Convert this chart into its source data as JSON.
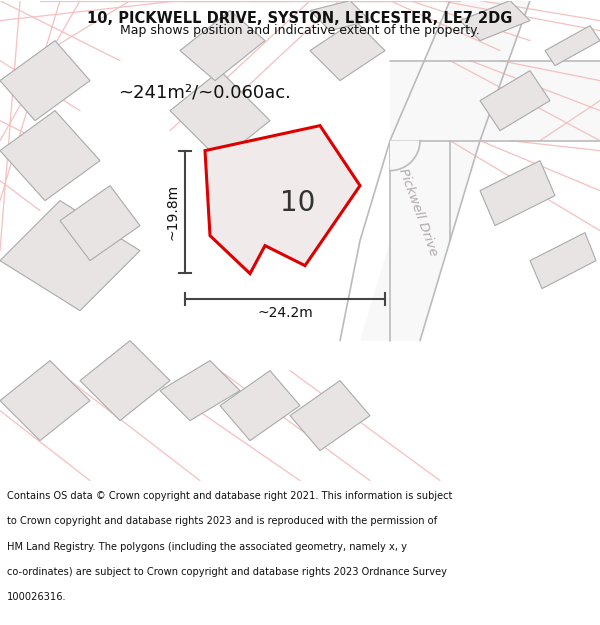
{
  "title_line1": "10, PICKWELL DRIVE, SYSTON, LEICESTER, LE7 2DG",
  "title_line2": "Map shows position and indicative extent of the property.",
  "property_label": "10",
  "area_label": "~241m²/~0.060ac.",
  "dim_width": "~24.2m",
  "dim_height": "~19.8m",
  "street_label": "Pickwell Drive",
  "footer_lines": [
    "Contains OS data © Crown copyright and database right 2021. This information is subject",
    "to Crown copyright and database rights 2023 and is reproduced with the permission of",
    "HM Land Registry. The polygons (including the associated geometry, namely x, y",
    "co-ordinates) are subject to Crown copyright and database rights 2023 Ordnance Survey",
    "100026316."
  ],
  "map_bg": "#ffffff",
  "building_fill": "#e8e4e4",
  "building_edge": "#aaaaaa",
  "pink_line": "#f5c0c0",
  "pink_line2": "#f0b0b0",
  "road_fill": "#ffffff",
  "road_edge": "#aaaaaa",
  "property_fill": "#f0eaea",
  "property_edge": "#dd0000",
  "dim_line_color": "#444444",
  "street_color": "#b0aaaa",
  "title_color": "#111111",
  "footer_color": "#111111",
  "footer_bg": "#ffffff"
}
